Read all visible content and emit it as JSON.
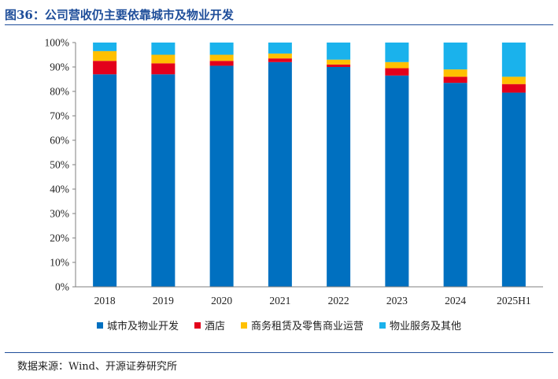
{
  "header": {
    "title": "图36：公司营收仍主要依靠城市及物业开发"
  },
  "footer": {
    "source": "数据来源：Wind、开源证券研究所"
  },
  "chart_data": {
    "type": "bar",
    "stacked": true,
    "categories": [
      "2018",
      "2019",
      "2020",
      "2021",
      "2022",
      "2023",
      "2024",
      "2025H1"
    ],
    "series": [
      {
        "name": "城市及物业开发",
        "color": "#0070c0",
        "values": [
          87,
          87,
          90.5,
          92,
          90,
          86.5,
          83.5,
          79.5
        ]
      },
      {
        "name": "酒店",
        "color": "#e3001b",
        "values": [
          5.5,
          4.5,
          2,
          1.5,
          1,
          3,
          2.5,
          3.5
        ]
      },
      {
        "name": "商务租赁及零售商业运营",
        "color": "#ffc000",
        "values": [
          4,
          3.5,
          2.5,
          2,
          2,
          2.5,
          3,
          3
        ]
      },
      {
        "name": "物业服务及其他",
        "color": "#1ab2ec",
        "values": [
          3.5,
          5,
          5,
          4.5,
          7,
          8,
          11,
          14
        ]
      }
    ],
    "ylim": [
      0,
      100
    ],
    "yticks": [
      "0%",
      "10%",
      "20%",
      "30%",
      "40%",
      "50%",
      "60%",
      "70%",
      "80%",
      "90%",
      "100%"
    ],
    "title": "",
    "xlabel": "",
    "ylabel": "",
    "legend": "bottom"
  }
}
